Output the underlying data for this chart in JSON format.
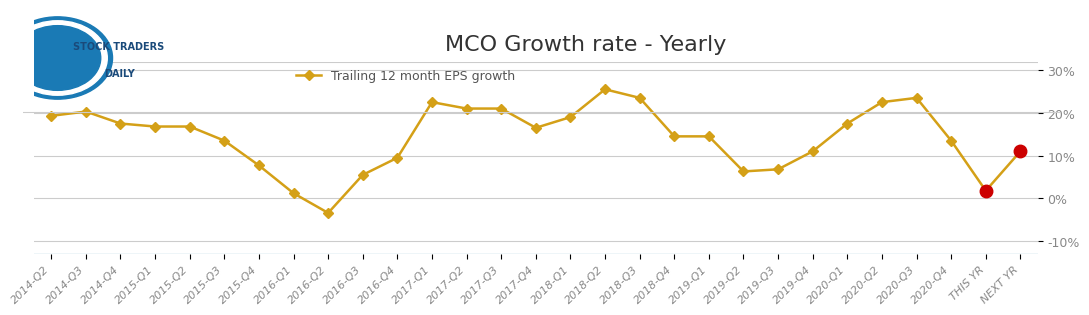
{
  "title": "MCO Growth rate - Yearly",
  "legend_label": "Trailing 12 month EPS growth",
  "x_labels": [
    "2014-Q2",
    "2014-Q3",
    "2014-Q4",
    "2015-Q1",
    "2015-Q2",
    "2015-Q3",
    "2015-Q4",
    "2016-Q1",
    "2016-Q2",
    "2016-Q3",
    "2016-Q4",
    "2017-Q1",
    "2017-Q2",
    "2017-Q3",
    "2017-Q4",
    "2018-Q1",
    "2018-Q2",
    "2018-Q3",
    "2018-Q4",
    "2019-Q1",
    "2019-Q2",
    "2019-Q3",
    "2019-Q4",
    "2020-Q1",
    "2020-Q2",
    "2020-Q3",
    "2020-Q4",
    "THIS YR",
    "NEXT YR"
  ],
  "y_values": [
    0.193,
    0.203,
    0.175,
    0.168,
    0.168,
    0.135,
    0.077,
    0.012,
    -0.034,
    0.055,
    0.095,
    0.225,
    0.21,
    0.21,
    0.165,
    0.19,
    0.255,
    0.235,
    0.145,
    0.145,
    0.063,
    0.068,
    0.11,
    0.175,
    0.225,
    0.235,
    0.135,
    0.018,
    0.11
  ],
  "point_colors": [
    "main",
    "main",
    "main",
    "main",
    "main",
    "main",
    "main",
    "main",
    "main",
    "main",
    "main",
    "main",
    "main",
    "main",
    "main",
    "main",
    "main",
    "main",
    "main",
    "main",
    "main",
    "main",
    "main",
    "main",
    "main",
    "main",
    "main",
    "special",
    "special"
  ],
  "line_color": "#D4A017",
  "marker_color_main": "#D4A017",
  "marker_color_special": "#CC0000",
  "ylim": [
    -0.13,
    0.32
  ],
  "yticks": [
    -0.1,
    0.0,
    0.1,
    0.2,
    0.3
  ],
  "ytick_labels": [
    "-10%",
    "0%",
    "10%",
    "20%",
    "30%"
  ],
  "background_color": "#ffffff",
  "grid_color": "#cccccc",
  "title_fontsize": 16,
  "label_fontsize": 8,
  "tick_fontsize": 9
}
